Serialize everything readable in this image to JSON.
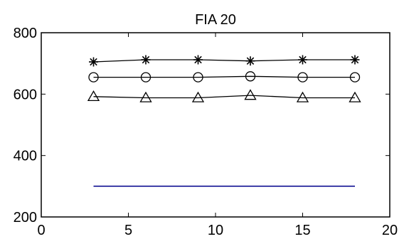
{
  "chart_data": {
    "type": "line",
    "title": "FIA 20",
    "xlabel": "",
    "ylabel": "",
    "xlim": [
      0,
      20
    ],
    "ylim": [
      200,
      800
    ],
    "x_ticks": [
      0,
      5,
      10,
      15,
      20
    ],
    "y_ticks": [
      200,
      400,
      600,
      800
    ],
    "grid": false,
    "legend": "none",
    "series": [
      {
        "marker": "star",
        "color": "#000000",
        "x": [
          3,
          6,
          9,
          12,
          15,
          18
        ],
        "y": [
          705,
          712,
          712,
          708,
          712,
          712
        ]
      },
      {
        "marker": "circle",
        "color": "#000000",
        "x": [
          3,
          6,
          9,
          12,
          15,
          18
        ],
        "y": [
          655,
          655,
          655,
          658,
          655,
          655
        ]
      },
      {
        "marker": "triangle",
        "color": "#000000",
        "x": [
          3,
          6,
          9,
          12,
          15,
          18
        ],
        "y": [
          592,
          588,
          588,
          596,
          588,
          588
        ]
      },
      {
        "marker": "none",
        "color": "#00008b",
        "x": [
          3,
          18
        ],
        "y": [
          300,
          300
        ]
      }
    ]
  }
}
